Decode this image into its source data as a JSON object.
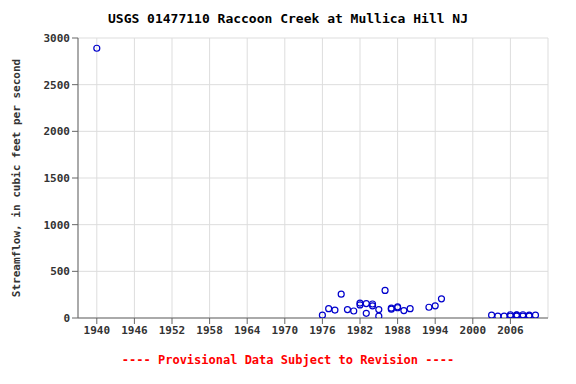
{
  "chart_data": {
    "type": "scatter",
    "title": "USGS 01477110 Raccoon Creek at Mullica Hill NJ",
    "ylabel": "Streamflow, in cubic feet per second",
    "annotations": [
      "---- Provisional Data Subject to Revision ----"
    ],
    "x": [
      1940,
      1976,
      1977,
      1978,
      1979,
      1980,
      1981,
      1982,
      1982,
      1983,
      1983,
      1984,
      1984,
      1985,
      1985,
      1986,
      1987,
      1987,
      1988,
      1988,
      1989,
      1990,
      1993,
      1994,
      1995,
      2003,
      2004,
      2005,
      2006,
      2006,
      2007,
      2007,
      2007,
      2008,
      2008,
      2009,
      2009,
      2010
    ],
    "values": [
      2890,
      30,
      100,
      85,
      255,
      90,
      75,
      140,
      160,
      50,
      155,
      130,
      150,
      20,
      90,
      295,
      95,
      105,
      110,
      120,
      80,
      100,
      115,
      130,
      205,
      30,
      20,
      20,
      20,
      35,
      20,
      30,
      35,
      20,
      35,
      20,
      30,
      30
    ],
    "color": "#0000cc",
    "marker": "circle",
    "xlim": [
      1937,
      2012
    ],
    "ylim": [
      0,
      3000
    ],
    "xticks": [
      1940,
      1946,
      1952,
      1958,
      1964,
      1970,
      1976,
      1982,
      1988,
      1994,
      2000,
      2006
    ],
    "yticks": [
      0,
      500,
      1000,
      1500,
      2000,
      2500,
      3000
    ],
    "grid": true
  }
}
